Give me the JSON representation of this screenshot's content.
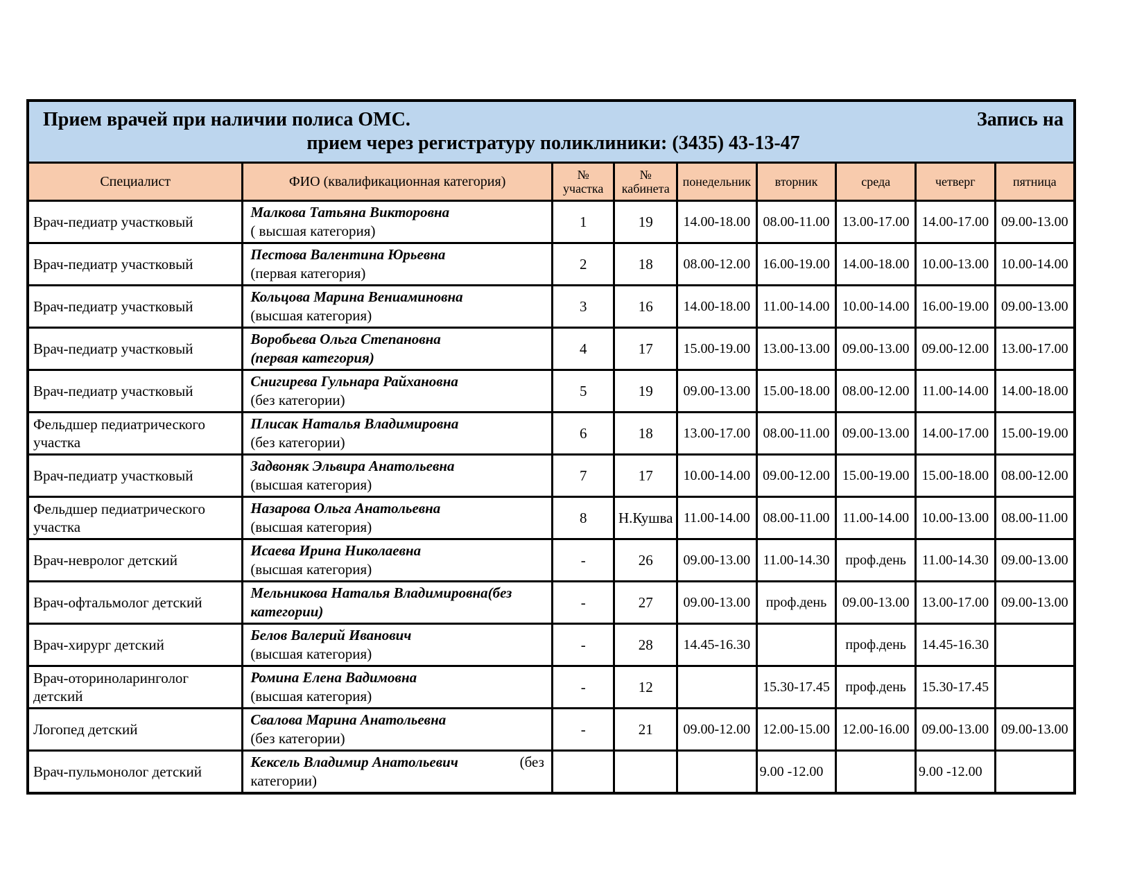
{
  "title": {
    "left": "Прием врачей при наличии полиса ОМС.",
    "right": "Запись на",
    "line2": "прием через регистратуру поликлиники: (3435) 43-13-47"
  },
  "columns": {
    "specialist": "Специалист",
    "fio": "ФИО (квалификационная категория)",
    "uchastok_no": "№",
    "uchastok_word": "участка",
    "kabinet_no": "№",
    "kabinet_word": "кабинета",
    "days": [
      "понедельник",
      "вторник",
      "среда",
      "четверг",
      "пятница"
    ]
  },
  "colors": {
    "title_bg": "#bdd6ee",
    "header_bg": "#f8cbad",
    "border": "#000000"
  },
  "rows": [
    {
      "specialist": "Врач-педиатр участковый",
      "fio_name": "Малкова Татьяна Викторовна",
      "fio_suffix": "",
      "fio_category": "( высшая категория)",
      "fio_category_bold": false,
      "uchastok": "1",
      "kabinet": "19",
      "schedule": [
        "14.00-18.00",
        "08.00-11.00",
        "13.00-17.00",
        "14.00-17.00",
        "09.00-13.00"
      ],
      "sched_left": false
    },
    {
      "specialist": "Врач-педиатр участковый",
      "fio_name": "Пестова Валентина Юрьевна",
      "fio_suffix": "",
      "fio_category": "(первая категория)",
      "fio_category_bold": false,
      "uchastok": "2",
      "kabinet": "18",
      "schedule": [
        "08.00-12.00",
        "16.00-19.00",
        "14.00-18.00",
        "10.00-13.00",
        "10.00-14.00"
      ],
      "sched_left": false
    },
    {
      "specialist": "Врач-педиатр участковый",
      "fio_name": "Кольцова Марина Вениаминовна",
      "fio_suffix": "",
      "fio_category": "(высшая категория)",
      "fio_category_bold": false,
      "uchastok": "3",
      "kabinet": "16",
      "schedule": [
        "14.00-18.00",
        "11.00-14.00",
        "10.00-14.00",
        "16.00-19.00",
        "09.00-13.00"
      ],
      "sched_left": false
    },
    {
      "specialist": "Врач-педиатр участковый",
      "fio_name": "Воробьева Ольга Степановна",
      "fio_suffix": "",
      "fio_category": "(первая категория)",
      "fio_category_bold": true,
      "uchastok": "4",
      "kabinet": "17",
      "schedule": [
        "15.00-19.00",
        "13.00-13.00",
        "09.00-13.00",
        "09.00-12.00",
        "13.00-17.00"
      ],
      "sched_left": false
    },
    {
      "specialist": "Врач-педиатр участковый",
      "fio_name": "Снигирева Гульнара Райхановна",
      "fio_suffix": "",
      "fio_category": "(без категории)",
      "fio_category_bold": false,
      "uchastok": "5",
      "kabinet": "19",
      "schedule": [
        "09.00-13.00",
        "15.00-18.00",
        "08.00-12.00",
        "11.00-14.00",
        "14.00-18.00"
      ],
      "sched_left": false
    },
    {
      "specialist": "Фельдшер педиатрического участка",
      "fio_name": "Плисак Наталья Владимировна",
      "fio_suffix": "",
      "fio_category": "(без категории)",
      "fio_category_bold": false,
      "uchastok": "6",
      "kabinet": "18",
      "schedule": [
        "13.00-17.00",
        "08.00-11.00",
        "09.00-13.00",
        "14.00-17.00",
        "15.00-19.00"
      ],
      "sched_left": false
    },
    {
      "specialist": "Врач-педиатр участковый",
      "fio_name": "Задвоняк Эльвира Анатольевна",
      "fio_suffix": "",
      "fio_category": "(высшая категория)",
      "fio_category_bold": false,
      "uchastok": "7",
      "kabinet": "17",
      "schedule": [
        "10.00-14.00",
        "09.00-12.00",
        "15.00-19.00",
        "15.00-18.00",
        "08.00-12.00"
      ],
      "sched_left": false
    },
    {
      "specialist": "Фельдшер педиатрического участка",
      "fio_name": "Назарова Ольга Анатольевна",
      "fio_suffix": "",
      "fio_category": "(высшая категория)",
      "fio_category_bold": false,
      "uchastok": "8",
      "kabinet": "Н.Кушва",
      "schedule": [
        "11.00-14.00",
        "08.00-11.00",
        "11.00-14.00",
        "10.00-13.00",
        "08.00-11.00"
      ],
      "sched_left": false
    },
    {
      "specialist": "Врач-невролог детский",
      "fio_name": "Исаева Ирина Николаевна",
      "fio_suffix": "",
      "fio_category": "(высшая категория)",
      "fio_category_bold": false,
      "uchastok": "-",
      "kabinet": "26",
      "schedule": [
        "09.00-13.00",
        "11.00-14.30",
        "проф.день",
        "11.00-14.30",
        "09.00-13.00"
      ],
      "sched_left": false
    },
    {
      "specialist": "Врач-офтальмолог детский",
      "fio_name": "Мельникова Наталья Владимировна(без",
      "fio_suffix": "",
      "fio_category": "категории)",
      "fio_category_bold": true,
      "uchastok": "-",
      "kabinet": "27",
      "schedule": [
        "09.00-13.00",
        "проф.день",
        "09.00-13.00",
        "13.00-17.00",
        "09.00-13.00"
      ],
      "sched_left": false
    },
    {
      "specialist": "Врач-хирург детский",
      "fio_name": "Белов Валерий Иванович",
      "fio_suffix": "",
      "fio_category": "(высшая категория)",
      "fio_category_bold": false,
      "uchastok": "-",
      "kabinet": "28",
      "schedule": [
        "14.45-16.30",
        "",
        "проф.день",
        "14.45-16.30",
        ""
      ],
      "sched_left": false
    },
    {
      "specialist": "Врач-оториноларинголог детский",
      "fio_name": "Ромина Елена Вадимовна",
      "fio_suffix": "",
      "fio_category": "(высшая категория)",
      "fio_category_bold": false,
      "uchastok": "-",
      "kabinet": "12",
      "schedule": [
        "",
        "15.30-17.45",
        "проф.день",
        "15.30-17.45",
        ""
      ],
      "sched_left": false
    },
    {
      "specialist": "Логопед детский",
      "fio_name": "Свалова Марина Анатольевна",
      "fio_suffix": "",
      "fio_category": "(без категории)",
      "fio_category_bold": false,
      "uchastok": "-",
      "kabinet": "21",
      "schedule": [
        "09.00-12.00",
        "12.00-15.00",
        "12.00-16.00",
        "09.00-13.00",
        "09.00-13.00"
      ],
      "sched_left": false
    },
    {
      "specialist": "Врач-пульмонолог детский",
      "fio_name": "Кексель Владимир Анатольевич",
      "fio_suffix": "(без",
      "fio_category": "категории)",
      "fio_category_bold": false,
      "uchastok": "",
      "kabinet": "",
      "schedule": [
        "",
        "9.00 -12.00",
        "",
        "9.00 -12.00",
        ""
      ],
      "sched_left": true
    }
  ]
}
